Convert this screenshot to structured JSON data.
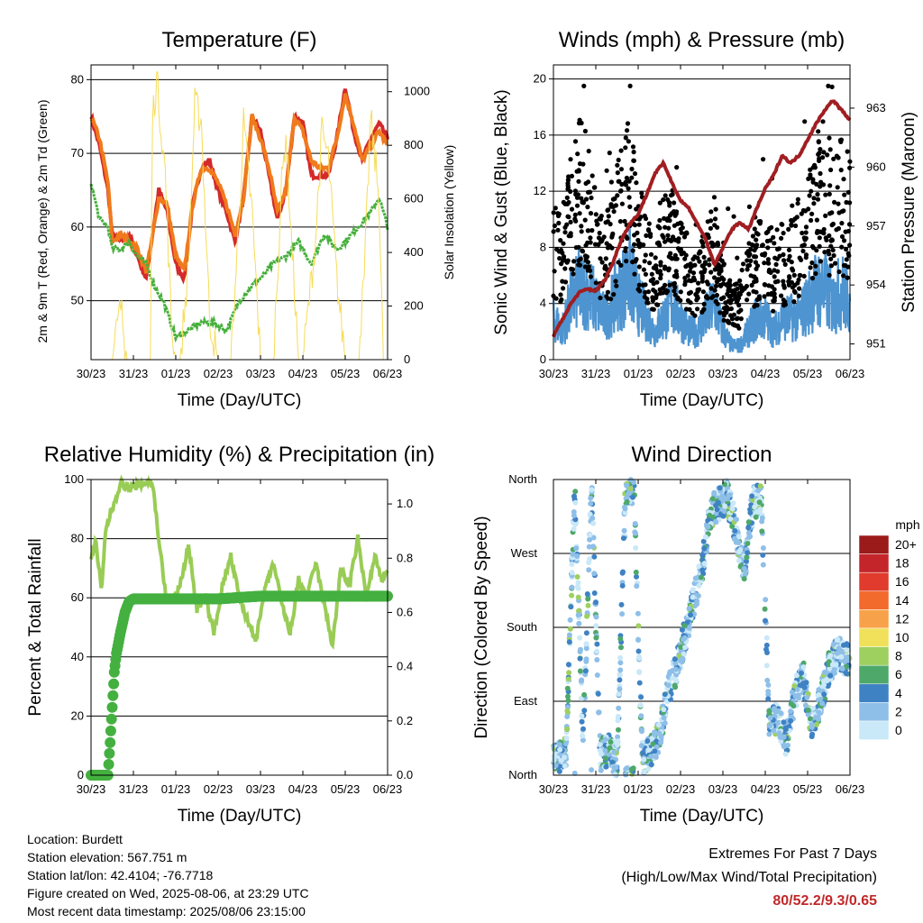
{
  "colors": {
    "red": "#d42a2a",
    "orange": "#f07a1c",
    "green_td": "#46b03c",
    "yellow": "#f6dc5a",
    "blue": "#4d94d0",
    "black": "#000000",
    "maroon": "#a01e22",
    "rh": "#99cc55",
    "rain": "#44b040",
    "highlight": "#c0282a"
  },
  "x_ticks": [
    "30/23",
    "31/23",
    "01/23",
    "02/23",
    "03/23",
    "04/23",
    "05/23",
    "06/23"
  ],
  "chart_data": [
    {
      "type": "line",
      "title": "Temperature (F)",
      "xlabel": "Time (Day/UTC)",
      "ylabel": "2m & 9m T (Red, Orange) & 2m Td (Green)",
      "y2label": "Solar Insolation (Yellow)",
      "ylim": [
        42,
        82
      ],
      "y_ticks": [
        50,
        60,
        70,
        80
      ],
      "y2lim": [
        0,
        1100
      ],
      "y2_ticks": [
        0,
        200,
        400,
        600,
        800,
        1000
      ],
      "grid": "horizontal at y ticks",
      "series": [
        {
          "role": "2m T",
          "color": "red",
          "x": [
            0,
            0.2,
            0.4,
            0.5,
            0.7,
            0.9,
            1.1,
            1.3,
            1.4,
            1.6,
            1.8,
            2.0,
            2.2,
            2.4,
            2.6,
            2.8,
            3.0,
            3.2,
            3.4,
            3.6,
            3.8,
            4.0,
            4.2,
            4.4,
            4.6,
            4.8,
            5.0,
            5.2,
            5.4,
            5.6,
            5.8,
            6.0,
            6.2,
            6.4,
            6.6,
            6.8,
            7.0
          ],
          "values": [
            75,
            71,
            65,
            59,
            58,
            59,
            56,
            53,
            57,
            65,
            62,
            55,
            53,
            63,
            68,
            69,
            65,
            62,
            58,
            64,
            75,
            73,
            67,
            61,
            65,
            75,
            74,
            67,
            67,
            67,
            72,
            79,
            73,
            69,
            72,
            74,
            72
          ]
        },
        {
          "role": "9m T",
          "color": "orange",
          "x": [
            0,
            0.2,
            0.4,
            0.5,
            0.7,
            0.9,
            1.1,
            1.3,
            1.4,
            1.6,
            1.8,
            2.0,
            2.2,
            2.4,
            2.6,
            2.8,
            3.0,
            3.2,
            3.4,
            3.6,
            3.8,
            4.0,
            4.2,
            4.4,
            4.6,
            4.8,
            5.0,
            5.2,
            5.4,
            5.6,
            5.8,
            6.0,
            6.2,
            6.4,
            6.6,
            6.8,
            7.0
          ],
          "values": [
            75,
            72,
            66,
            58,
            59,
            58,
            57,
            54,
            57,
            64,
            63,
            56,
            54,
            63,
            68,
            68,
            66,
            63,
            59,
            64,
            75,
            72,
            68,
            62,
            65,
            75,
            73,
            69,
            68,
            68,
            72,
            78,
            74,
            69,
            71,
            73,
            71
          ]
        },
        {
          "role": "2m Td",
          "color": "green_td",
          "x": [
            0,
            0.2,
            0.4,
            0.5,
            0.7,
            0.9,
            1.1,
            1.3,
            1.5,
            1.7,
            2.0,
            2.3,
            2.6,
            2.9,
            3.2,
            3.5,
            3.8,
            4.0,
            4.3,
            4.6,
            4.9,
            5.2,
            5.5,
            5.8,
            6.0,
            6.3,
            6.6,
            6.8,
            7.0
          ],
          "values": [
            66,
            61,
            60,
            57,
            57,
            58,
            56,
            55,
            52,
            50,
            45,
            46,
            47,
            47,
            46,
            50,
            52,
            53,
            55,
            56,
            58,
            55,
            59,
            57,
            58,
            60,
            62,
            64,
            60
          ]
        },
        {
          "role": "Solar Insolation",
          "color": "yellow",
          "axis": "y2",
          "x": [
            0.5,
            0.7,
            0.85,
            0.95,
            1.1,
            1.3,
            1.4,
            1.45,
            1.55,
            1.75,
            1.9,
            2.0,
            2.1,
            2.3,
            2.45,
            2.6,
            2.8,
            3.0,
            3.3,
            3.45,
            3.6,
            3.8,
            4.0,
            4.3,
            4.5,
            4.6,
            4.75,
            4.9,
            5.0,
            5.3,
            5.45,
            5.6,
            5.8,
            6.0,
            6.3,
            6.45,
            6.6,
            6.8,
            6.9
          ],
          "values": [
            0,
            200,
            0,
            0,
            0,
            0,
            0,
            900,
            1050,
            700,
            120,
            0,
            0,
            350,
            950,
            900,
            150,
            0,
            0,
            400,
            880,
            550,
            0,
            0,
            650,
            850,
            400,
            0,
            0,
            450,
            850,
            750,
            300,
            0,
            0,
            300,
            900,
            600,
            0
          ]
        }
      ]
    },
    {
      "type": "scatter",
      "title": "Winds (mph) & Pressure (mb)",
      "xlabel": "Time (Day/UTC)",
      "ylabel": "Sonic Wind & Gust (Blue, Black)",
      "y2label": "Station Pressure (Maroon)",
      "ylim": [
        0,
        21
      ],
      "y_ticks": [
        0,
        4,
        8,
        12,
        16,
        20
      ],
      "y2lim": [
        950.2,
        965.2
      ],
      "y2_ticks": [
        951,
        954,
        957,
        960,
        963
      ],
      "series": [
        {
          "role": "Sonic Wind",
          "color": "blue",
          "x": [
            0,
            0.2,
            0.4,
            0.6,
            0.8,
            1.0,
            1.2,
            1.4,
            1.6,
            1.8,
            2.0,
            2.2,
            2.4,
            2.6,
            2.8,
            3.0,
            3.2,
            3.4,
            3.6,
            3.8,
            4.0,
            4.2,
            4.4,
            4.6,
            4.8,
            5.0,
            5.2,
            5.4,
            5.6,
            5.8,
            6.0,
            6.2,
            6.4,
            6.6,
            6.8,
            7.0
          ],
          "values": [
            3,
            2,
            4,
            5,
            5,
            4,
            3,
            4,
            5,
            6,
            4,
            3,
            2,
            3,
            4,
            3,
            2,
            2,
            3,
            4,
            2,
            1,
            1,
            2,
            3,
            3,
            2,
            3,
            3,
            3,
            4,
            5,
            5,
            4,
            5,
            4
          ]
        },
        {
          "role": "Gust",
          "color": "black",
          "x": [
            0,
            0.2,
            0.4,
            0.6,
            0.8,
            1.0,
            1.2,
            1.4,
            1.6,
            1.8,
            2.0,
            2.2,
            2.4,
            2.6,
            2.8,
            3.0,
            3.2,
            3.4,
            3.6,
            3.8,
            4.0,
            4.2,
            4.4,
            4.6,
            4.8,
            5.0,
            5.2,
            5.4,
            5.6,
            5.8,
            6.0,
            6.2,
            6.4,
            6.6,
            6.8,
            7.0
          ],
          "values": [
            8,
            7,
            10,
            12,
            11,
            9,
            7,
            8,
            11,
            12,
            9,
            7,
            6,
            8,
            9,
            7,
            6,
            5,
            7,
            8,
            5,
            4,
            4,
            6,
            7,
            7,
            6,
            7,
            7,
            8,
            9,
            11,
            12,
            10,
            11,
            10
          ]
        },
        {
          "role": "Station Pressure",
          "color": "maroon",
          "axis": "y2",
          "x": [
            0,
            0.2,
            0.4,
            0.6,
            0.8,
            1.0,
            1.2,
            1.4,
            1.6,
            1.8,
            2.0,
            2.2,
            2.4,
            2.6,
            2.8,
            3.0,
            3.2,
            3.4,
            3.6,
            3.8,
            4.0,
            4.2,
            4.4,
            4.6,
            4.8,
            5.0,
            5.2,
            5.4,
            5.6,
            5.8,
            6.0,
            6.2,
            6.4,
            6.6,
            6.8,
            7.0
          ],
          "values": [
            951.4,
            952.2,
            953.0,
            953.6,
            953.8,
            953.7,
            954.2,
            955.1,
            956.3,
            957.1,
            957.6,
            958.6,
            959.7,
            960.2,
            959.2,
            958.3,
            957.9,
            957.1,
            956.3,
            955.0,
            955.9,
            956.8,
            957.2,
            956.8,
            957.9,
            958.9,
            959.6,
            960.6,
            960.2,
            960.6,
            961.4,
            962.2,
            962.9,
            963.4,
            962.9,
            962.4
          ]
        }
      ]
    },
    {
      "type": "line",
      "title": "Relative Humidity (%) & Precipitation (in)",
      "xlabel": "Time (Day/UTC)",
      "ylabel": "Percent & Total Rainfall",
      "ylim": [
        0,
        100
      ],
      "y_ticks": [
        0,
        20,
        40,
        60,
        80,
        100
      ],
      "y2lim": [
        0,
        1.09
      ],
      "y2_ticks": [
        0.0,
        0.2,
        0.4,
        0.6,
        0.8,
        1.0
      ],
      "series": [
        {
          "role": "Relative Humidity",
          "color": "rh",
          "x": [
            0,
            0.1,
            0.25,
            0.35,
            0.5,
            0.7,
            0.9,
            1.1,
            1.3,
            1.45,
            1.6,
            1.75,
            1.9,
            2.1,
            2.3,
            2.5,
            2.7,
            2.9,
            3.1,
            3.3,
            3.5,
            3.7,
            3.9,
            4.1,
            4.3,
            4.5,
            4.7,
            4.9,
            5.1,
            5.3,
            5.5,
            5.7,
            5.9,
            6.1,
            6.3,
            6.5,
            6.7,
            6.85,
            7.0
          ],
          "values": [
            72,
            80,
            62,
            84,
            90,
            99,
            97,
            98,
            99,
            99,
            80,
            62,
            58,
            64,
            78,
            56,
            60,
            48,
            64,
            74,
            60,
            52,
            46,
            62,
            72,
            58,
            48,
            66,
            60,
            72,
            58,
            44,
            70,
            64,
            80,
            60,
            74,
            66,
            70
          ]
        },
        {
          "role": "Total Precipitation",
          "color": "rain",
          "axis": "y2",
          "x": [
            0,
            0.2,
            0.4,
            0.45,
            0.5,
            0.55,
            0.6,
            0.7,
            0.8,
            0.9,
            1.0,
            2.0,
            3.0,
            4.0,
            5.0,
            6.0,
            7.0
          ],
          "values": [
            0,
            0,
            0,
            0.12,
            0.25,
            0.38,
            0.45,
            0.53,
            0.6,
            0.64,
            0.65,
            0.65,
            0.65,
            0.66,
            0.66,
            0.66,
            0.66
          ]
        }
      ]
    },
    {
      "type": "scatter",
      "title": "Wind Direction",
      "xlabel": "Time (Day/UTC)",
      "ylabel": "Direction (Colored By Speed)",
      "y_ticks": [
        "North",
        "East",
        "South",
        "West",
        "North"
      ],
      "ylim": [
        0,
        360
      ],
      "legend": {
        "title": "mph",
        "placement": "right",
        "labels": [
          "20+",
          "18",
          "16",
          "14",
          "12",
          "10",
          "8",
          "6",
          "4",
          "2",
          "0"
        ],
        "colors": [
          "#9b1a1a",
          "#c4252a",
          "#e03b2c",
          "#f26a2c",
          "#f7a24a",
          "#f1e05a",
          "#9ed060",
          "#4ea86a",
          "#3f82c4",
          "#8ebfe8",
          "#c9e8f8"
        ]
      },
      "series": [
        {
          "role": "direction",
          "x": [
            0.1,
            0.3,
            0.5,
            0.7,
            0.9,
            1.1,
            1.3,
            1.5,
            1.7,
            1.9,
            2.1,
            2.3,
            2.5,
            2.7,
            2.9,
            3.1,
            3.3,
            3.5,
            3.7,
            3.9,
            4.1,
            4.3,
            4.5,
            4.7,
            4.9,
            5.1,
            5.3,
            5.5,
            5.7,
            5.9,
            6.1,
            6.3,
            6.5,
            6.7,
            6.9
          ],
          "values": [
            20,
            30,
            350,
            40,
            355,
            25,
            30,
            15,
            350,
            350,
            20,
            30,
            50,
            100,
            130,
            170,
            210,
            250,
            320,
            330,
            340,
            300,
            250,
            330,
            340,
            60,
            70,
            40,
            100,
            120,
            60,
            90,
            130,
            150,
            140
          ]
        }
      ]
    }
  ],
  "info": {
    "location": "Location: Burdett",
    "elevation": "Station elevation: 567.751 m",
    "latlon": "Station lat/lon: 42.4104; -76.7718",
    "created": "Figure created on Wed, 2025-08-06, at 23:29 UTC",
    "timestamp": "Most recent data timestamp: 2025/08/06 23:15:00"
  },
  "extremes": {
    "line1": "Extremes For Past 7 Days",
    "line2": "(High/Low/Max Wind/Total Precipitation)",
    "value": "80/52.2/9.3/0.65"
  }
}
